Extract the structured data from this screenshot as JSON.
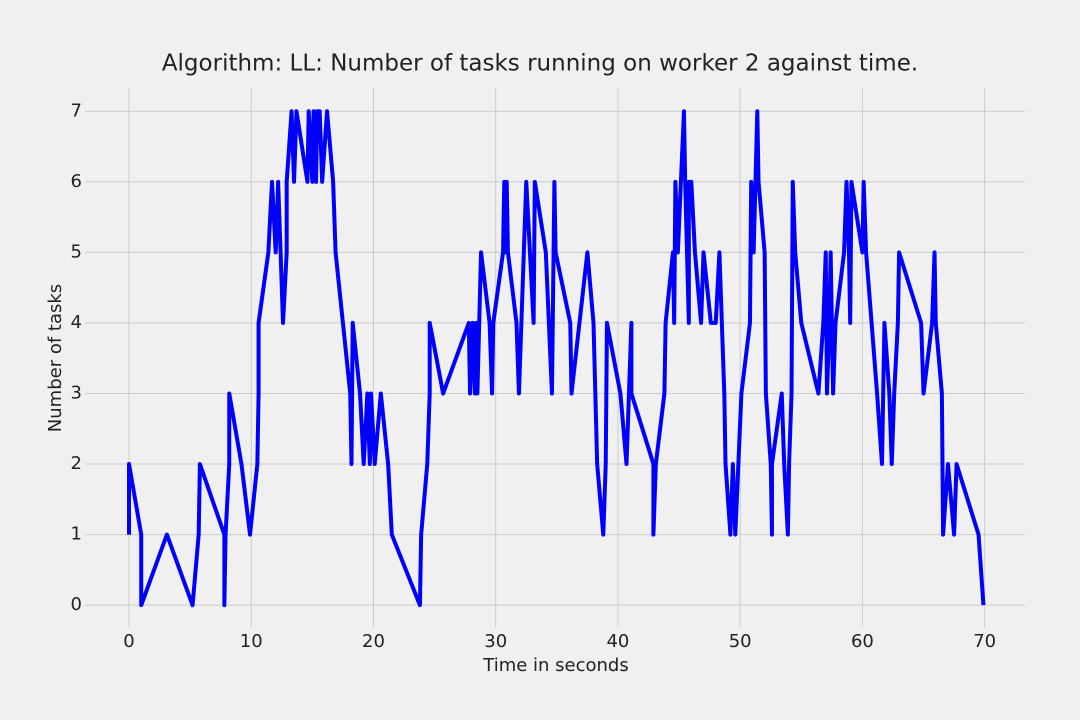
{
  "chart_data": {
    "type": "line",
    "title": "Algorithm: LL: Number of tasks running on worker 2 against time.",
    "x_label": "Time in seconds",
    "y_label": "Number of tasks",
    "color": "#0000ff",
    "grid": true,
    "xlim": [
      -3.6,
      73.3
    ],
    "ylim": [
      -0.31,
      7.33
    ],
    "xticks": [
      0,
      10,
      20,
      30,
      40,
      50,
      60,
      70
    ],
    "yticks": [
      0,
      1,
      2,
      3,
      4,
      5,
      6,
      7
    ],
    "x": [
      0,
      0,
      1,
      1,
      3.1,
      5.2,
      5.7,
      5.8,
      7.8,
      7.8,
      7.9,
      8.2,
      8.2,
      9.2,
      9.9,
      10.5,
      10.6,
      10.6,
      11.4,
      11.7,
      12,
      12.2,
      12.4,
      12.6,
      12.9,
      12.9,
      13.3,
      13.5,
      13.7,
      14.6,
      14.7,
      15.0,
      15.1,
      15.3,
      15.4,
      15.6,
      15.8,
      16.2,
      16.7,
      16.9,
      17.5,
      18.1,
      18.2,
      18.3,
      18.9,
      19.2,
      19.5,
      19.7,
      19.8,
      20.1,
      20.6,
      21.2,
      21.5,
      23.8,
      23.9,
      24.4,
      24.6,
      24.6,
      25.7,
      27.8,
      27.9,
      28.1,
      28.3,
      28.4,
      28.5,
      28.8,
      29.5,
      29.7,
      29.8,
      30.6,
      30.7,
      30.8,
      30.9,
      31.0,
      31.7,
      31.9,
      32.5,
      32.8,
      33.1,
      33.2,
      34.1,
      34.6,
      34.8,
      34.9,
      36.1,
      36.2,
      37.5,
      38.0,
      38.3,
      38.8,
      39.0,
      39.1,
      40.2,
      40.7,
      41.1,
      41.1,
      42.9,
      42.9,
      43.1,
      43.8,
      43.9,
      44.5,
      44.6,
      44.7,
      44.9,
      45.4,
      45.5,
      45.8,
      45.8,
      46.0,
      46.3,
      46.8,
      47.0,
      47.6,
      48.0,
      48.3,
      48.7,
      48.8,
      49.2,
      49.4,
      49.6,
      50.1,
      50.8,
      50.9,
      51.1,
      51.4,
      51.5,
      52.0,
      52.1,
      52.5,
      52.6,
      52.6,
      53.4,
      53.6,
      53.9,
      54.0,
      54.2,
      54.3,
      54.5,
      55.0,
      56.4,
      56.8,
      57.0,
      57.1,
      57.3,
      57.4,
      57.6,
      57.8,
      58.5,
      58.7,
      58.9,
      59.0,
      59.1,
      60.0,
      60.1,
      60.3,
      61.2,
      61.6,
      61.8,
      62.2,
      62.4,
      62.6,
      62.9,
      63.0,
      64.8,
      65.0,
      65.7,
      65.9,
      66.0,
      66.5,
      66.6,
      67.0,
      67.5,
      67.7,
      69.5,
      69.9
    ],
    "values": [
      1,
      2,
      1,
      0,
      1,
      0,
      1,
      2,
      1,
      0,
      1,
      2,
      3,
      2,
      1,
      2,
      3,
      4,
      5,
      6,
      5,
      6,
      5,
      4,
      5,
      6,
      7,
      6,
      7,
      6,
      7,
      6,
      7,
      6,
      7,
      7,
      6,
      7,
      6,
      5,
      4,
      3,
      2,
      4,
      3,
      2,
      3,
      2,
      3,
      2,
      3,
      2,
      1,
      0,
      1,
      2,
      3,
      4,
      3,
      4,
      3,
      4,
      3,
      4,
      3,
      5,
      4,
      3,
      4,
      5,
      6,
      5,
      6,
      5,
      4,
      3,
      6,
      5,
      4,
      6,
      5,
      3,
      6,
      5,
      4,
      3,
      5,
      4,
      2,
      1,
      2,
      4,
      3,
      2,
      4,
      3,
      2,
      1,
      2,
      3,
      4,
      5,
      4,
      6,
      5,
      7,
      6,
      4,
      6,
      6,
      5,
      4,
      5,
      4,
      4,
      5,
      3,
      2,
      1,
      2,
      1,
      3,
      4,
      6,
      5,
      7,
      6,
      5,
      3,
      2,
      1,
      2,
      3,
      2,
      1,
      2,
      3,
      6,
      5,
      4,
      3,
      4,
      5,
      3,
      4,
      5,
      3,
      4,
      5,
      6,
      5,
      4,
      6,
      5,
      6,
      5,
      3,
      2,
      4,
      3,
      2,
      3,
      4,
      5,
      4,
      3,
      4,
      5,
      4,
      3,
      1,
      2,
      1,
      2,
      1,
      0
    ]
  }
}
